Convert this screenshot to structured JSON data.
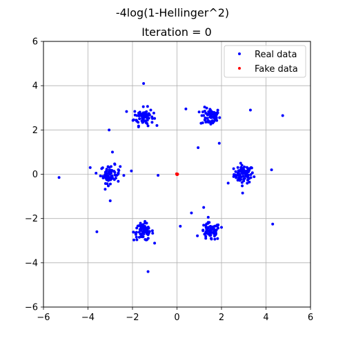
{
  "chart_data": {
    "type": "scatter",
    "title": "-4log(1-Hellinger^2)",
    "subtitle": "Iteration = 0",
    "xlim": [
      -6,
      6
    ],
    "ylim": [
      -6,
      6
    ],
    "xticks": [
      -6,
      -4,
      -2,
      0,
      2,
      4,
      6
    ],
    "yticks": [
      -6,
      -4,
      -2,
      0,
      2,
      4,
      6
    ],
    "xtick_labels": [
      "−6",
      "−4",
      "−2",
      "0",
      "2",
      "4",
      "6"
    ],
    "ytick_labels": [
      "−6",
      "−4",
      "−2",
      "0",
      "2",
      "4",
      "6"
    ],
    "grid": true,
    "legend_position": "top-right",
    "series": [
      {
        "name": "Real data",
        "color": "#0000ff",
        "clusters": [
          {
            "center": [
              3.0,
              0.0
            ],
            "count": 80
          },
          {
            "center": [
              1.5,
              2.6
            ],
            "count": 70
          },
          {
            "center": [
              -1.5,
              2.6
            ],
            "count": 70
          },
          {
            "center": [
              -3.0,
              0.0
            ],
            "count": 70
          },
          {
            "center": [
              -1.5,
              -2.6
            ],
            "count": 70
          },
          {
            "center": [
              1.5,
              -2.6
            ],
            "count": 70
          }
        ],
        "outliers": [
          [
            -5.3,
            -0.15
          ],
          [
            4.75,
            2.65
          ],
          [
            4.3,
            -2.25
          ],
          [
            -1.5,
            4.1
          ],
          [
            -3.05,
            2.0
          ],
          [
            -1.3,
            -4.4
          ],
          [
            -3.6,
            -2.6
          ],
          [
            0.15,
            -2.35
          ],
          [
            0.65,
            -1.75
          ],
          [
            1.25,
            2.85
          ],
          [
            0.4,
            2.95
          ],
          [
            3.3,
            2.9
          ],
          [
            4.25,
            0.2
          ],
          [
            2.0,
            -2.4
          ],
          [
            0.95,
            1.2
          ],
          [
            -0.85,
            -0.05
          ],
          [
            -3.9,
            0.3
          ],
          [
            -2.9,
            1.0
          ],
          [
            -2.05,
            0.15
          ],
          [
            2.3,
            -0.4
          ],
          [
            1.9,
            1.4
          ],
          [
            2.95,
            -0.85
          ],
          [
            -3.0,
            -1.2
          ],
          [
            1.2,
            -1.5
          ]
        ]
      },
      {
        "name": "Fake data",
        "color": "#ff0000",
        "points": [
          [
            0.0,
            0.0
          ],
          [
            0.02,
            0.01
          ],
          [
            -0.02,
            0.02
          ],
          [
            0.01,
            -0.02
          ],
          [
            -0.01,
            -0.01
          ],
          [
            0.03,
            0.0
          ]
        ]
      }
    ]
  }
}
